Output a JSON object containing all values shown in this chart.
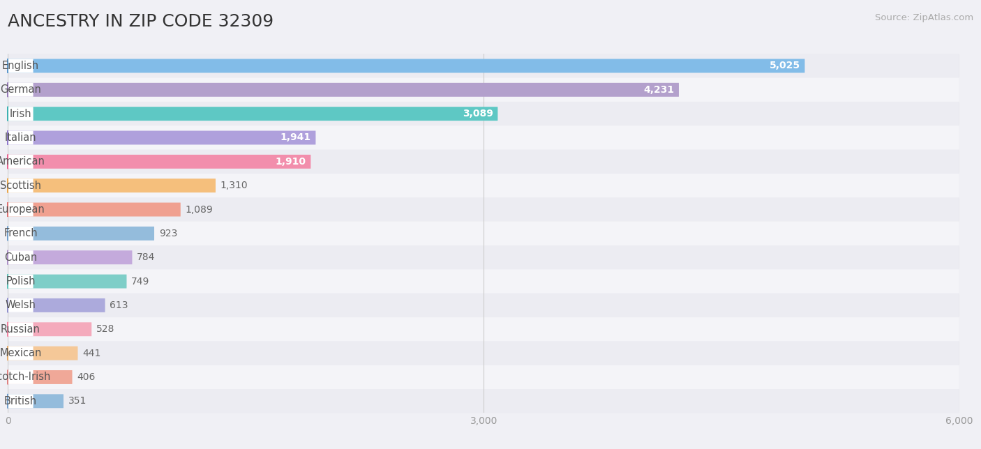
{
  "title": "ANCESTRY IN ZIP CODE 32309",
  "source": "Source: ZipAtlas.com",
  "categories": [
    "English",
    "German",
    "Irish",
    "Italian",
    "American",
    "Scottish",
    "European",
    "French",
    "Cuban",
    "Polish",
    "Welsh",
    "Russian",
    "Mexican",
    "Scotch-Irish",
    "British"
  ],
  "values": [
    5025,
    4231,
    3089,
    1941,
    1910,
    1310,
    1089,
    923,
    784,
    749,
    613,
    528,
    441,
    406,
    351
  ],
  "bar_colors": [
    "#82BCE8",
    "#B3A0CC",
    "#5EC8C4",
    "#AFA0DC",
    "#F28EAC",
    "#F5BF7C",
    "#F0A090",
    "#94BCDC",
    "#C4AADC",
    "#7ECEC8",
    "#ACAADC",
    "#F4AABC",
    "#F5C898",
    "#F0A898",
    "#94BCDC"
  ],
  "dot_colors": [
    "#5090C8",
    "#9070B4",
    "#30ACAC",
    "#8870C8",
    "#E85888",
    "#E8A040",
    "#DC6868",
    "#6898C8",
    "#A888C4",
    "#50BEB4",
    "#8888C8",
    "#F07898",
    "#E8A860",
    "#DC7878",
    "#6898C8"
  ],
  "row_bg_even": "#ececf2",
  "row_bg_odd": "#f4f4f8",
  "bar_bg_color": "#ffffff",
  "xlim_max": 6000,
  "bar_height": 0.58,
  "background_color": "#f0f0f5",
  "title_fontsize": 18,
  "label_fontsize": 10.5,
  "value_fontsize": 10,
  "source_fontsize": 9.5,
  "value_inside_threshold": 1700,
  "tick_label_color": "#999999",
  "value_inside_color": "#ffffff",
  "value_outside_color": "#666666",
  "label_color": "#555555"
}
